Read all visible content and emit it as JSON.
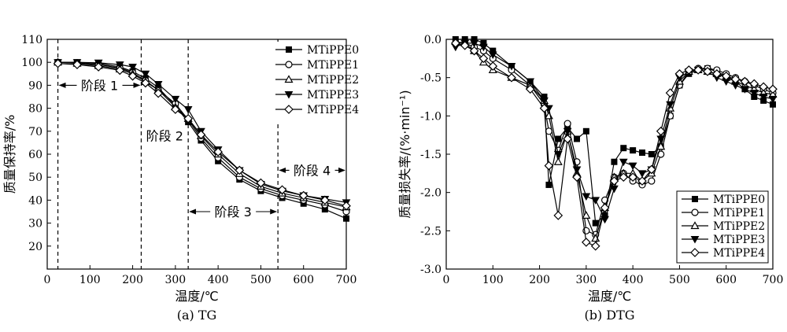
{
  "chart_data": [
    {
      "type": "line",
      "caption": "(a) TG",
      "xlabel": "温度/℃",
      "ylabel": "质量保持率/%",
      "xlim": [
        0,
        700
      ],
      "ylim": [
        10,
        110
      ],
      "xticks": [
        0,
        100,
        200,
        300,
        400,
        500,
        600,
        700
      ],
      "yticks": [
        20,
        30,
        40,
        50,
        60,
        70,
        80,
        90,
        100,
        110
      ],
      "legend_position": "top-right",
      "grid": false,
      "stage_lines_x": [
        25,
        220,
        330,
        540
      ],
      "stages": [
        {
          "label": "阶段 1",
          "x_from": 25,
          "x_to": 220,
          "y": 90
        },
        {
          "label": "阶段 2",
          "x_from": 220,
          "x_to": 330,
          "y": 68
        },
        {
          "label": "阶段 3",
          "x_from": 330,
          "x_to": 540,
          "y": 35
        },
        {
          "label": "阶段 4",
          "x_from": 540,
          "x_to": 700,
          "y": 53
        }
      ],
      "series": [
        {
          "name": "MTiPPE0",
          "marker": "square",
          "x": [
            25,
            70,
            120,
            170,
            200,
            230,
            260,
            300,
            330,
            360,
            400,
            450,
            500,
            550,
            600,
            650,
            700
          ],
          "y": [
            100,
            100,
            99.5,
            98,
            96,
            93,
            89,
            81,
            74,
            66,
            57,
            49,
            44,
            41,
            38.5,
            36,
            32
          ]
        },
        {
          "name": "MTiPPE1",
          "marker": "circle",
          "x": [
            25,
            70,
            120,
            170,
            200,
            230,
            260,
            300,
            330,
            360,
            400,
            450,
            500,
            550,
            600,
            650,
            700
          ],
          "y": [
            100,
            99.8,
            99,
            97.5,
            95.5,
            92,
            88,
            82,
            75,
            67,
            58.5,
            50,
            45,
            42,
            40,
            38,
            35
          ]
        },
        {
          "name": "MTiPPE2",
          "marker": "triangle-up",
          "x": [
            25,
            70,
            120,
            170,
            200,
            230,
            260,
            300,
            330,
            360,
            400,
            450,
            500,
            550,
            600,
            650,
            700
          ],
          "y": [
            100,
            99.5,
            98.5,
            97,
            95,
            91.5,
            88,
            80.5,
            75.5,
            68,
            60,
            51.5,
            46,
            43,
            41,
            39,
            37
          ]
        },
        {
          "name": "MTiPPE3",
          "marker": "triangle-down",
          "x": [
            25,
            70,
            120,
            170,
            200,
            230,
            260,
            300,
            330,
            360,
            400,
            450,
            500,
            550,
            600,
            650,
            700
          ],
          "y": [
            100,
            100,
            99.8,
            99,
            98,
            95,
            90.5,
            84,
            79.5,
            70,
            62,
            53,
            47,
            44,
            42,
            40.5,
            39
          ]
        },
        {
          "name": "MTiPPE4",
          "marker": "diamond",
          "x": [
            25,
            70,
            120,
            170,
            200,
            230,
            260,
            300,
            330,
            360,
            400,
            450,
            500,
            550,
            600,
            650,
            700
          ],
          "y": [
            99.5,
            99,
            98,
            96.5,
            94,
            91,
            86.5,
            79.5,
            75.5,
            68.5,
            61,
            53,
            47.5,
            44.5,
            42,
            40,
            37.5
          ]
        }
      ]
    },
    {
      "type": "line",
      "caption": "(b) DTG",
      "xlabel": "温度/℃",
      "ylabel": "质量损失率/(%·min⁻¹)",
      "xlim": [
        0,
        700
      ],
      "ylim": [
        -3.0,
        0.0
      ],
      "xticks": [
        0,
        100,
        200,
        300,
        400,
        500,
        600,
        700
      ],
      "yticks": [
        0.0,
        -0.5,
        -1.0,
        -1.5,
        -2.0,
        -2.5,
        -3.0
      ],
      "legend_position": "bottom-right",
      "grid": false,
      "series": [
        {
          "name": "MTiPPE0",
          "marker": "square",
          "x": [
            20,
            40,
            60,
            80,
            100,
            140,
            180,
            210,
            220,
            240,
            260,
            280,
            300,
            320,
            340,
            360,
            380,
            400,
            420,
            440,
            460,
            480,
            500,
            520,
            540,
            560,
            580,
            600,
            620,
            640,
            660,
            680,
            700
          ],
          "y": [
            0,
            0,
            0,
            -0.05,
            -0.15,
            -0.35,
            -0.55,
            -0.75,
            -1.9,
            -1.3,
            -1.15,
            -1.3,
            -1.2,
            -2.4,
            -2.3,
            -1.6,
            -1.42,
            -1.45,
            -1.48,
            -1.5,
            -1.4,
            -1.0,
            -0.6,
            -0.45,
            -0.4,
            -0.38,
            -0.42,
            -0.48,
            -0.55,
            -0.65,
            -0.75,
            -0.8,
            -0.85
          ]
        },
        {
          "name": "MTiPPE1",
          "marker": "circle",
          "x": [
            20,
            40,
            60,
            80,
            100,
            140,
            180,
            210,
            220,
            240,
            260,
            280,
            300,
            320,
            340,
            360,
            380,
            400,
            420,
            440,
            460,
            480,
            500,
            520,
            540,
            560,
            580,
            600,
            620,
            640,
            660,
            680,
            700
          ],
          "y": [
            -0.05,
            -0.05,
            -0.1,
            -0.15,
            -0.25,
            -0.4,
            -0.6,
            -0.85,
            -1.2,
            -1.45,
            -1.1,
            -1.6,
            -2.5,
            -2.55,
            -2.1,
            -1.8,
            -1.75,
            -1.85,
            -1.9,
            -1.85,
            -1.5,
            -1.0,
            -0.6,
            -0.42,
            -0.38,
            -0.38,
            -0.4,
            -0.45,
            -0.5,
            -0.55,
            -0.6,
            -0.65,
            -0.7
          ]
        },
        {
          "name": "MTiPPE2",
          "marker": "triangle-up",
          "x": [
            20,
            40,
            60,
            80,
            100,
            140,
            180,
            210,
            220,
            240,
            260,
            280,
            300,
            320,
            340,
            360,
            380,
            400,
            420,
            440,
            460,
            480,
            500,
            520,
            540,
            560,
            580,
            600,
            620,
            640,
            660,
            680,
            700
          ],
          "y": [
            -0.03,
            -0.05,
            -0.15,
            -0.3,
            -0.4,
            -0.5,
            -0.6,
            -0.8,
            -1.0,
            -1.6,
            -1.2,
            -1.75,
            -2.3,
            -2.6,
            -2.2,
            -1.8,
            -1.75,
            -1.75,
            -1.85,
            -1.75,
            -1.4,
            -0.9,
            -0.55,
            -0.42,
            -0.4,
            -0.42,
            -0.45,
            -0.5,
            -0.55,
            -0.6,
            -0.65,
            -0.7,
            -0.72
          ]
        },
        {
          "name": "MTiPPE3",
          "marker": "triangle-down",
          "x": [
            20,
            40,
            60,
            80,
            100,
            140,
            180,
            210,
            220,
            240,
            260,
            280,
            300,
            320,
            340,
            360,
            380,
            400,
            420,
            440,
            460,
            480,
            500,
            520,
            540,
            560,
            580,
            600,
            620,
            640,
            660,
            680,
            700
          ],
          "y": [
            -0.1,
            -0.05,
            -0.05,
            -0.1,
            -0.2,
            -0.35,
            -0.55,
            -0.8,
            -0.9,
            -1.5,
            -1.2,
            -1.7,
            -2.05,
            -2.1,
            -2.35,
            -1.95,
            -1.6,
            -1.65,
            -1.75,
            -1.7,
            -1.3,
            -0.85,
            -0.5,
            -0.42,
            -0.4,
            -0.42,
            -0.5,
            -0.55,
            -0.6,
            -0.65,
            -0.7,
            -0.75,
            -0.78
          ]
        },
        {
          "name": "MTiPPE4",
          "marker": "diamond",
          "x": [
            20,
            40,
            60,
            80,
            100,
            140,
            180,
            210,
            220,
            240,
            260,
            280,
            300,
            320,
            340,
            360,
            380,
            400,
            420,
            440,
            460,
            480,
            500,
            520,
            540,
            560,
            580,
            600,
            620,
            640,
            660,
            680,
            700
          ],
          "y": [
            -0.05,
            -0.08,
            -0.15,
            -0.25,
            -0.35,
            -0.5,
            -0.65,
            -0.9,
            -1.65,
            -2.3,
            -1.3,
            -1.8,
            -2.65,
            -2.7,
            -2.2,
            -1.85,
            -1.8,
            -1.8,
            -1.85,
            -1.7,
            -1.2,
            -0.7,
            -0.45,
            -0.4,
            -0.4,
            -0.42,
            -0.45,
            -0.48,
            -0.52,
            -0.55,
            -0.58,
            -0.62,
            -0.65
          ]
        }
      ]
    }
  ]
}
